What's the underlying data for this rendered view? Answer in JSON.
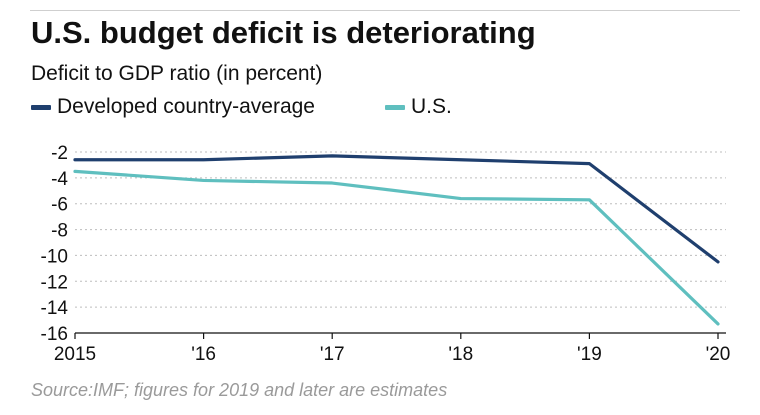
{
  "chart_data": {
    "type": "line",
    "title": "U.S. budget deficit is deteriorating",
    "subtitle": "Deficit to GDP ratio (in percent)",
    "source": "Source:IMF; figures for 2019 and later are estimates",
    "x": [
      "2015",
      "'16",
      "'17",
      "'18",
      "'19",
      "'20"
    ],
    "ylim": [
      -16,
      -2
    ],
    "yticks": [
      -2,
      -4,
      -6,
      -8,
      -10,
      -12,
      -14,
      -16
    ],
    "ytick_labels": [
      "-2",
      "-4",
      "-6",
      "-8",
      "-10",
      "-12",
      "-14",
      "-16"
    ],
    "grid": true,
    "legend_position": "top-left",
    "series": [
      {
        "name": "Developed country-average",
        "color": "#1f3f6e",
        "values": [
          -2.6,
          -2.6,
          -2.3,
          -2.6,
          -2.9,
          -10.5
        ]
      },
      {
        "name": "U.S.",
        "color": "#5fbfbf",
        "values": [
          -3.5,
          -4.2,
          -4.4,
          -5.6,
          -5.7,
          -15.3
        ]
      }
    ]
  }
}
